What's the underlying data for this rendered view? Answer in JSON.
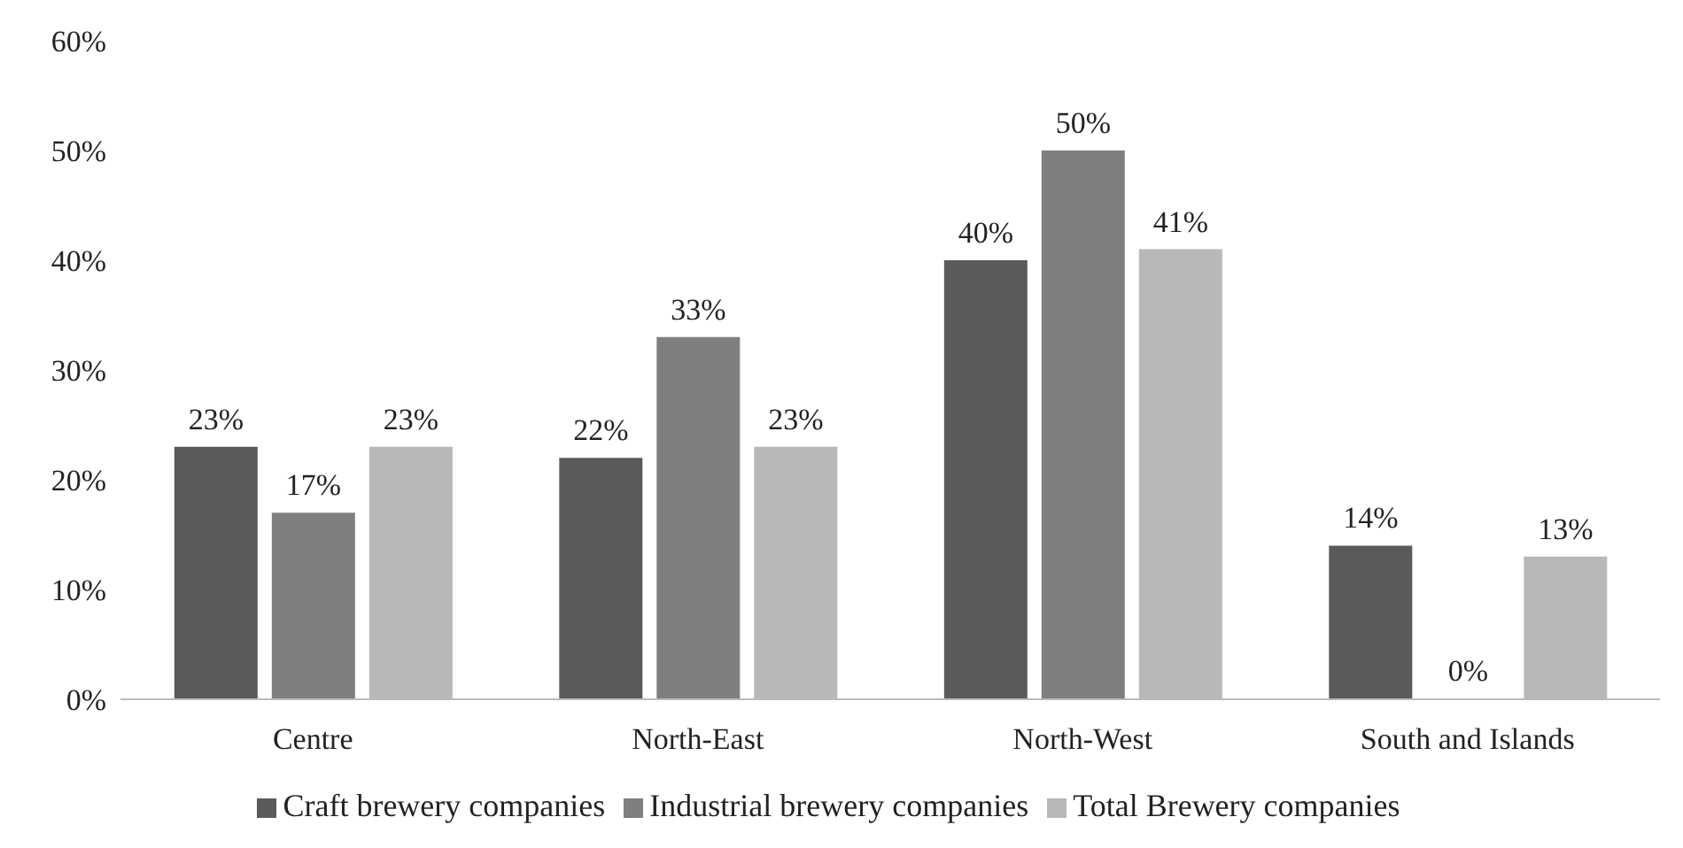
{
  "chart_data": {
    "type": "bar",
    "categories": [
      "Centre",
      "North-East",
      "North-West",
      "South and Islands"
    ],
    "series": [
      {
        "name": "Craft brewery companies",
        "color": "#5a5a5a",
        "values": [
          23,
          22,
          40,
          14
        ],
        "value_labels": [
          "23%",
          "22%",
          "40%",
          "14%"
        ]
      },
      {
        "name": "Industrial brewery companies",
        "color": "#7f7f7f",
        "values": [
          17,
          33,
          50,
          0
        ],
        "value_labels": [
          "17%",
          "33%",
          "50%",
          "0%"
        ]
      },
      {
        "name": "Total Brewery companies",
        "color": "#b8b8b8",
        "values": [
          23,
          23,
          41,
          13
        ],
        "value_labels": [
          "23%",
          "23%",
          "41%",
          "13%"
        ]
      }
    ],
    "ylim": [
      0,
      60
    ],
    "yticks": [
      {
        "value": 0,
        "label": "0%"
      },
      {
        "value": 10,
        "label": "10%"
      },
      {
        "value": 20,
        "label": "20%"
      },
      {
        "value": 30,
        "label": "30%"
      },
      {
        "value": 40,
        "label": "40%"
      },
      {
        "value": 50,
        "label": "50%"
      },
      {
        "value": 60,
        "label": "60%"
      }
    ],
    "grid": false,
    "legend": "bottom"
  }
}
